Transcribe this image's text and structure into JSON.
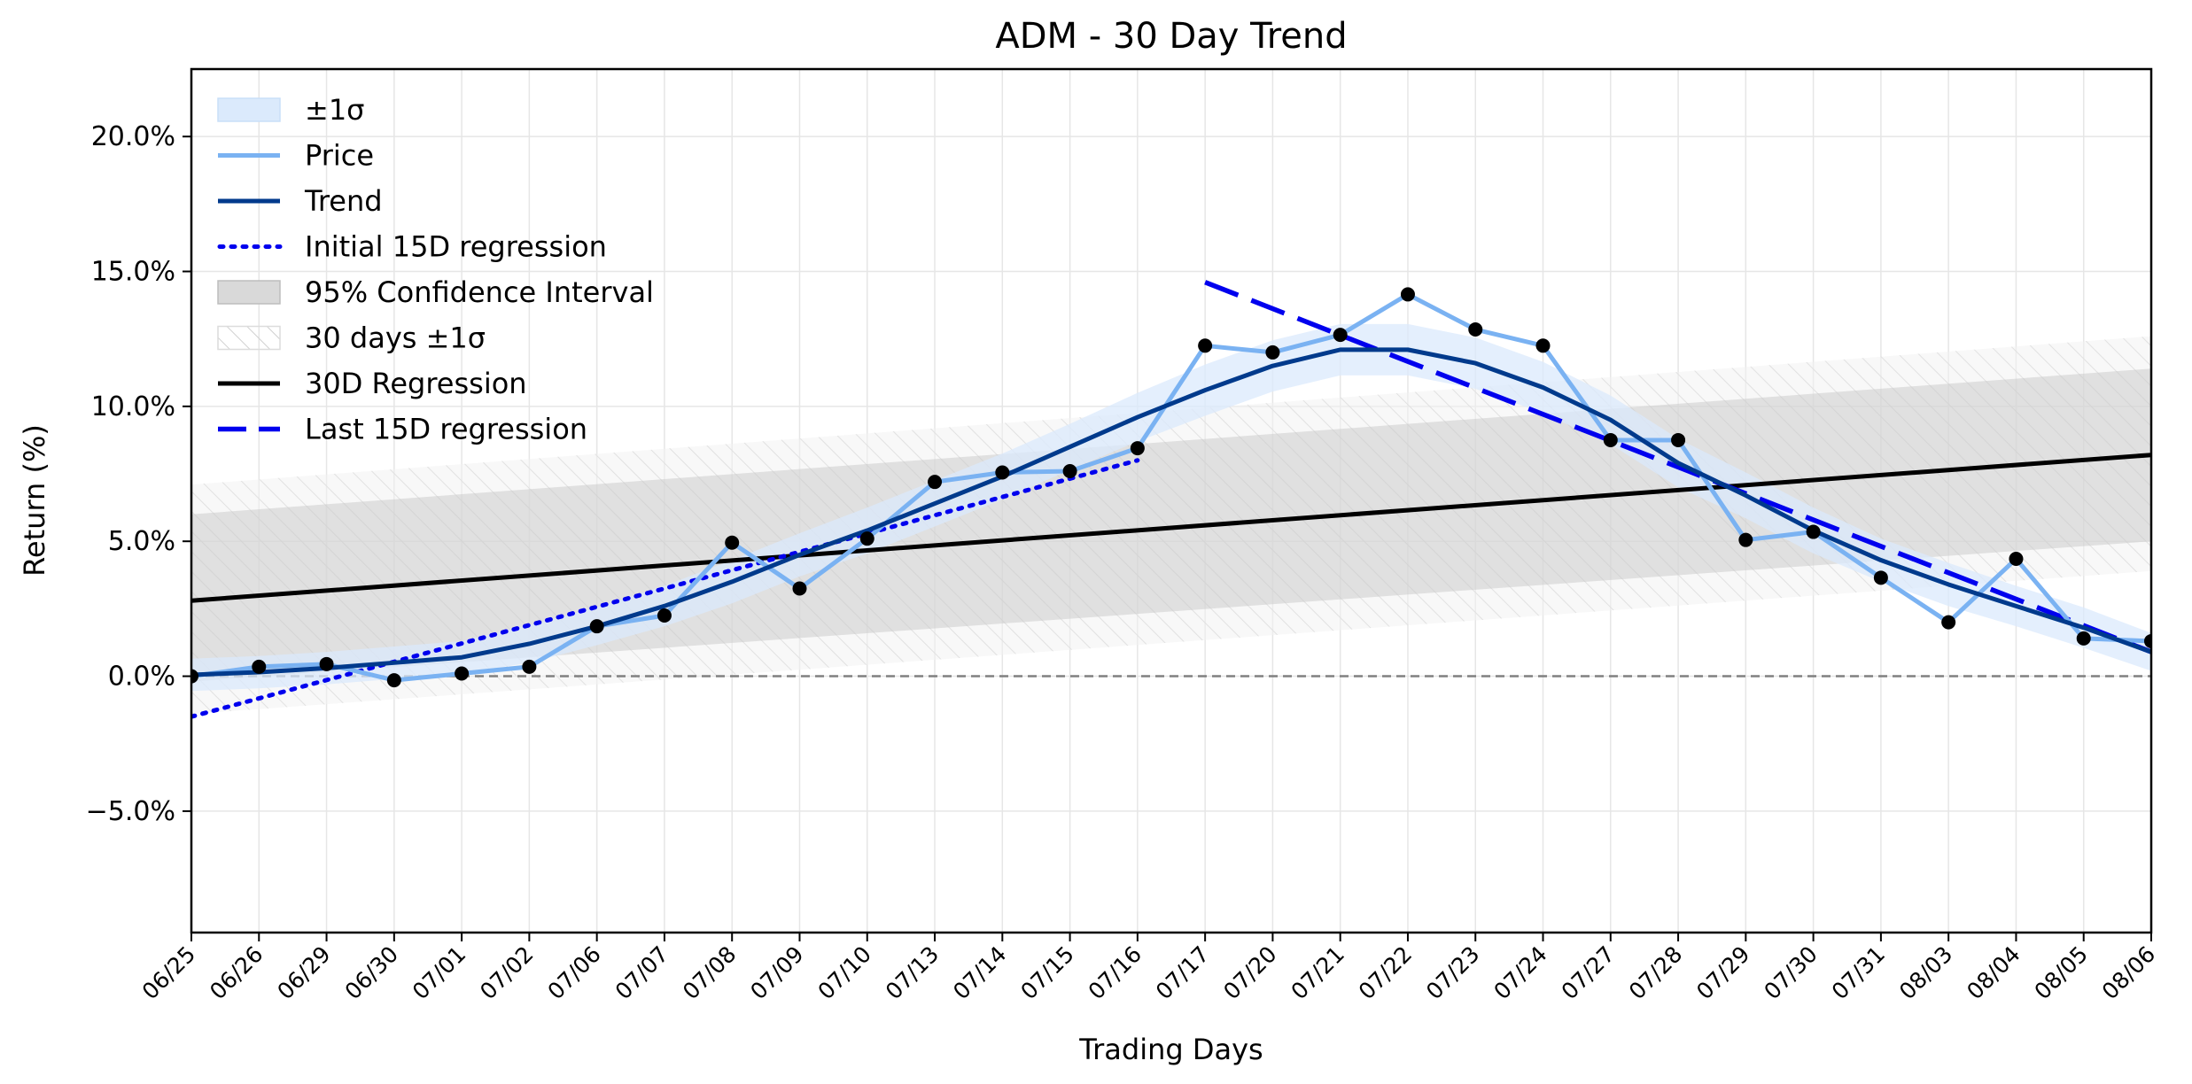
{
  "chart_data": {
    "type": "line",
    "title": "ADM - 30 Day Trend",
    "xlabel": "Trading Days",
    "ylabel": "Return (%)",
    "categories": [
      "06/25",
      "06/26",
      "06/29",
      "06/30",
      "07/01",
      "07/02",
      "07/06",
      "07/07",
      "07/08",
      "07/09",
      "07/10",
      "07/13",
      "07/14",
      "07/15",
      "07/16",
      "07/17",
      "07/20",
      "07/21",
      "07/22",
      "07/23",
      "07/24",
      "07/27",
      "07/28",
      "07/29",
      "07/30",
      "07/31",
      "08/03",
      "08/04",
      "08/05",
      "08/06"
    ],
    "ylim": [
      -9.5,
      22.5
    ],
    "yticks": [
      -5,
      0,
      5,
      10,
      15,
      20
    ],
    "ytick_labels": [
      "−5.0%",
      "0.0%",
      "5.0%",
      "10.0%",
      "15.0%",
      "20.0%"
    ],
    "grid": true,
    "legend_position": "top-left",
    "zero_line": 0,
    "colors": {
      "price": "#7ab2f2",
      "trend": "#003a8c",
      "sigma_band": "#dbeafc",
      "regression": "#000000",
      "partial_regression": "#0000ee",
      "ci_band": "#c8c8c8",
      "hatch": "#d0d0d0",
      "zero_line": "#808080",
      "markers": "#000000"
    },
    "legend": [
      {
        "key": "sigma",
        "label": "±1σ"
      },
      {
        "key": "price",
        "label": "Price"
      },
      {
        "key": "trend",
        "label": "Trend"
      },
      {
        "key": "initial",
        "label": "Initial 15D regression"
      },
      {
        "key": "ci",
        "label": "95% Confidence Interval"
      },
      {
        "key": "band30",
        "label": "30 days ±1σ"
      },
      {
        "key": "reg30",
        "label": "30D Regression"
      },
      {
        "key": "last",
        "label": "Last 15D regression"
      }
    ],
    "series": [
      {
        "name": "Price",
        "values": [
          0.0,
          0.35,
          0.45,
          -0.15,
          0.1,
          0.35,
          1.85,
          2.25,
          4.95,
          3.25,
          5.1,
          7.2,
          7.55,
          7.6,
          8.45,
          12.25,
          12.0,
          12.65,
          14.15,
          12.85,
          12.25,
          8.75,
          8.75,
          5.05,
          5.35,
          3.65,
          2.0,
          4.35,
          1.4,
          1.3
        ]
      },
      {
        "name": "Trend",
        "values": [
          0.05,
          0.15,
          0.3,
          0.5,
          0.7,
          1.2,
          1.85,
          2.6,
          3.5,
          4.5,
          5.4,
          6.4,
          7.4,
          8.5,
          9.6,
          10.6,
          11.5,
          12.1,
          12.1,
          11.6,
          10.7,
          9.5,
          7.9,
          6.7,
          5.4,
          4.3,
          3.4,
          2.6,
          1.8,
          0.9
        ]
      },
      {
        "name": "±1σ half-width",
        "values": [
          0.6,
          0.6,
          0.6,
          0.6,
          0.6,
          0.7,
          0.7,
          0.75,
          0.8,
          0.8,
          0.85,
          0.85,
          0.85,
          0.85,
          0.9,
          0.95,
          0.95,
          0.95,
          0.95,
          0.95,
          0.95,
          0.9,
          0.9,
          0.85,
          0.85,
          0.8,
          0.8,
          0.75,
          0.75,
          0.7
        ]
      },
      {
        "name": "Initial 15D regression",
        "start": [
          0,
          -1.5
        ],
        "end": [
          14,
          8.0
        ]
      },
      {
        "name": "Last 15D regression",
        "start": [
          15,
          14.6
        ],
        "end": [
          29,
          0.9
        ]
      },
      {
        "name": "30D Regression",
        "start": [
          0,
          2.8
        ],
        "end": [
          29,
          8.2
        ]
      },
      {
        "name": "95% Confidence Interval",
        "lower": [
          0,
          -0.2,
          29,
          5.0
        ],
        "upper": [
          0,
          6.0,
          29,
          11.4
        ]
      },
      {
        "name": "30 days ±1σ",
        "lower": [
          0,
          -1.4,
          29,
          3.9
        ],
        "upper": [
          0,
          7.1,
          29,
          12.6
        ]
      }
    ]
  }
}
